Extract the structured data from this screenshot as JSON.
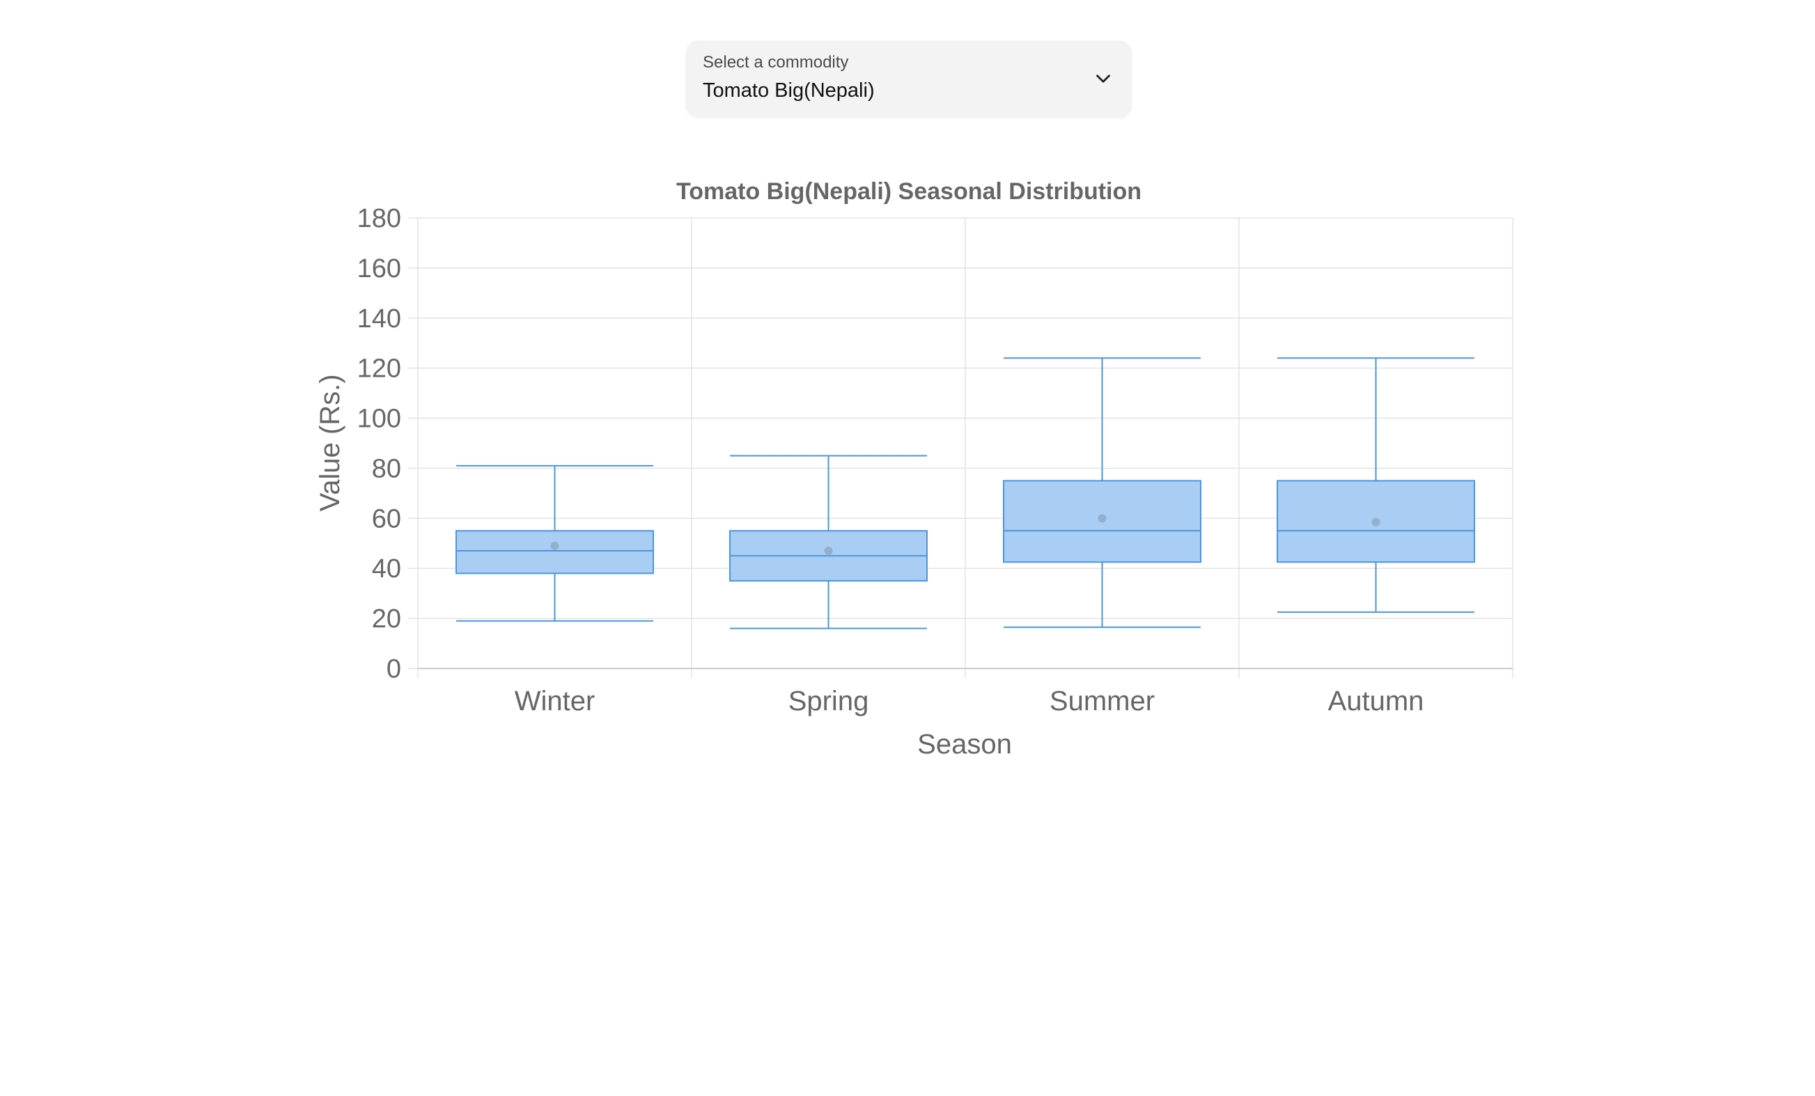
{
  "commodity_select": {
    "label": "Select a commodity",
    "value": "Tomato Big(Nepali)",
    "icon": "chevron-down-icon"
  },
  "chart_data": {
    "type": "boxplot",
    "title": "Tomato Big(Nepali) Seasonal Distribution",
    "xlabel": "Season",
    "ylabel": "Value (Rs.)",
    "ylim": [
      0,
      180
    ],
    "yticks": [
      0,
      20,
      40,
      60,
      80,
      100,
      120,
      140,
      160,
      180
    ],
    "grid": true,
    "categories": [
      "Winter",
      "Spring",
      "Summer",
      "Autumn"
    ],
    "boxes": [
      {
        "category": "Winter",
        "min": 19,
        "q1": 38,
        "median": 47,
        "q3": 55,
        "max": 81,
        "mean": 49
      },
      {
        "category": "Spring",
        "min": 16,
        "q1": 35,
        "median": 45,
        "q3": 55,
        "max": 85,
        "mean": 47
      },
      {
        "category": "Summer",
        "min": 16.5,
        "q1": 42.5,
        "median": 55,
        "q3": 75,
        "max": 124,
        "mean": 60
      },
      {
        "category": "Autumn",
        "min": 22.5,
        "q1": 42.5,
        "median": 55,
        "q3": 75,
        "max": 124,
        "mean": 58.5
      }
    ],
    "colors": {
      "box_fill": "#a9cdf3",
      "box_stroke": "#4a95e0",
      "mean_marker": "#8fa8c0",
      "grid": "#e3e3e3",
      "axis_text": "#666666",
      "title_text": "#666666"
    }
  }
}
